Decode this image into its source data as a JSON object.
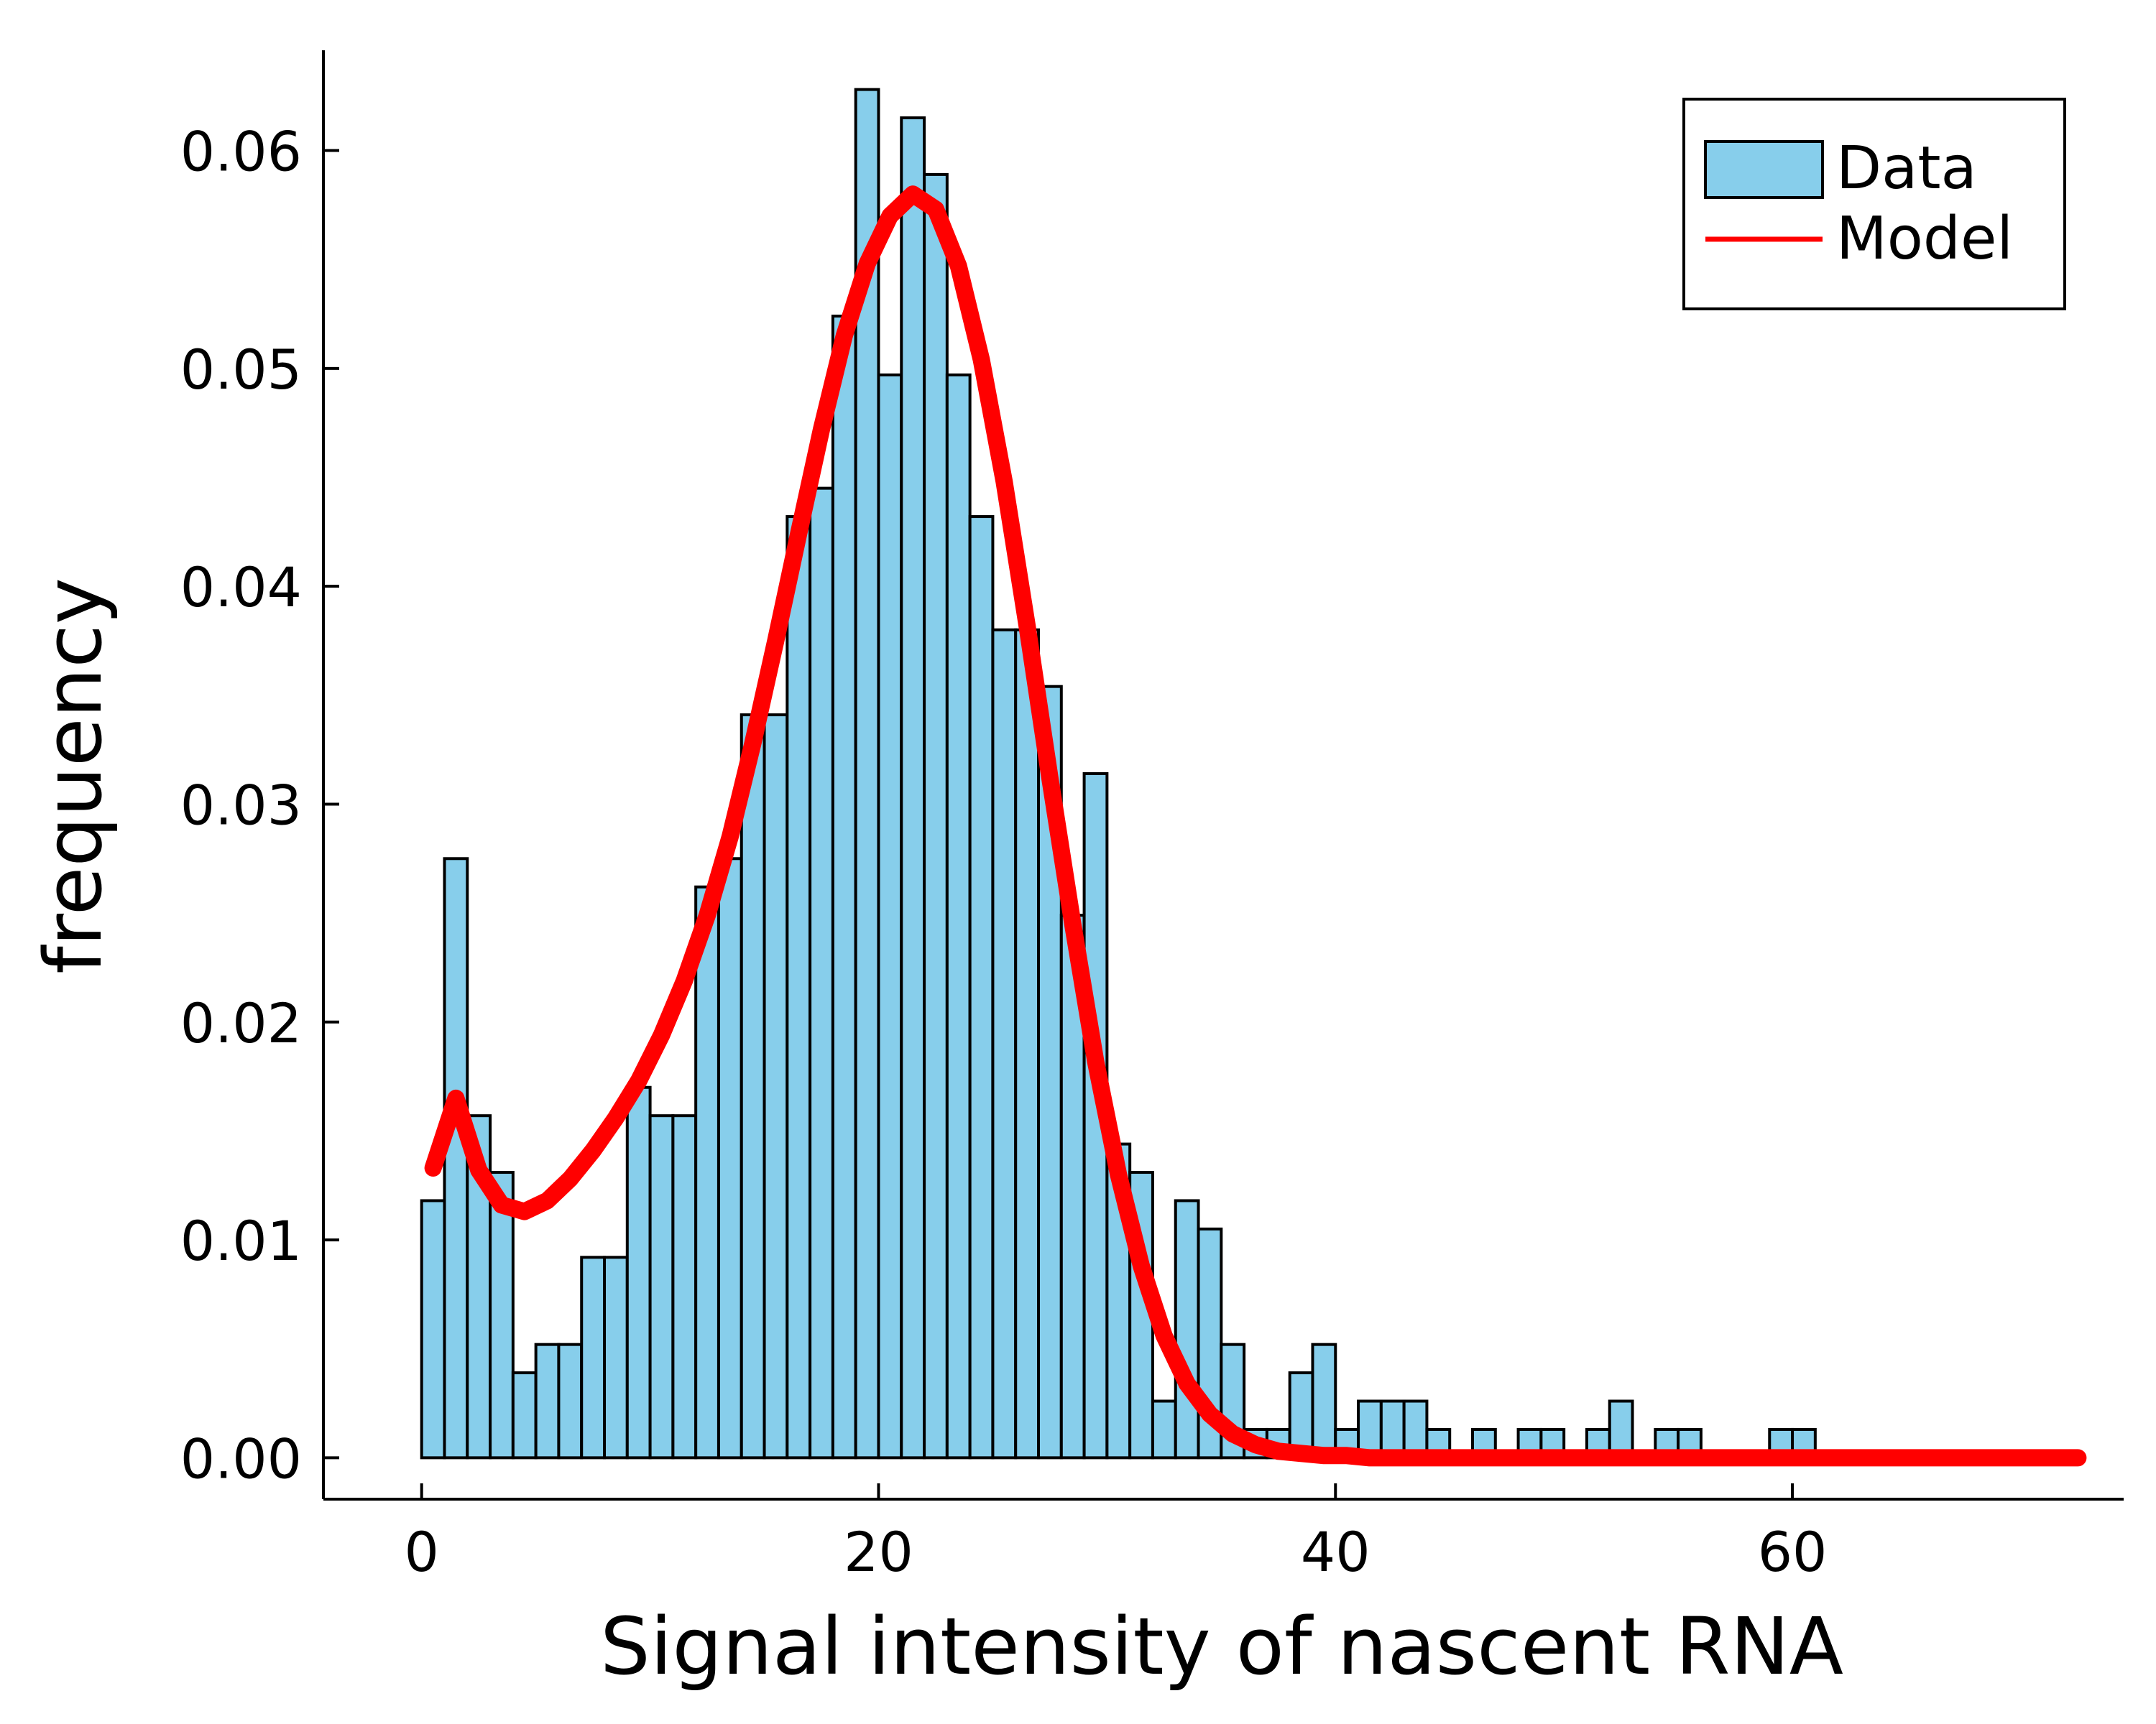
{
  "chart_data": {
    "type": "bar",
    "xlabel": "Signal intensity of nascent RNA",
    "ylabel": "frequency",
    "xlim": [
      -4.3,
      74.5
    ],
    "ylim": [
      -0.0019,
      0.0646
    ],
    "xticks": [
      0,
      20,
      40,
      60
    ],
    "yticks": [
      0.0,
      0.01,
      0.02,
      0.03,
      0.04,
      0.05,
      0.06
    ],
    "xtick_labels": [
      "0",
      "20",
      "40",
      "60"
    ],
    "ytick_labels": [
      "0.00",
      "0.01",
      "0.02",
      "0.03",
      "0.04",
      "0.05",
      "0.06"
    ],
    "grid": false,
    "legend_position": "top-right",
    "colors": {
      "bars": "#87ceeb",
      "bar_edge": "#000000",
      "model": "#ff0000"
    },
    "histogram": {
      "name": "Data",
      "bin_start": 0,
      "bin_width": 1,
      "values": [
        0.0118,
        0.0275,
        0.0157,
        0.0131,
        0.0039,
        0.0052,
        0.0052,
        0.0092,
        0.0092,
        0.017,
        0.0157,
        0.0157,
        0.0262,
        0.0275,
        0.0341,
        0.0341,
        0.0432,
        0.0445,
        0.0524,
        0.0628,
        0.0497,
        0.0615,
        0.0589,
        0.0497,
        0.0432,
        0.038,
        0.038,
        0.0354,
        0.0249,
        0.0314,
        0.0144,
        0.0131,
        0.0026,
        0.0118,
        0.0105,
        0.0052,
        0.0013,
        0.0013,
        0.0039,
        0.0052,
        0.0013,
        0.0026,
        0.0026,
        0.0026,
        0.0013,
        0.0,
        0.0013,
        0.0,
        0.0013,
        0.0013,
        0.0,
        0.0013,
        0.0026,
        0.0,
        0.0013,
        0.0013,
        0.0,
        0.0,
        0.0,
        0.0013,
        0.0013
      ]
    },
    "series": [
      {
        "name": "Model",
        "x": [
          0.5,
          1.5,
          2.5,
          3.5,
          4.5,
          5.5,
          6.5,
          7.5,
          8.5,
          9.5,
          10.5,
          11.5,
          12.5,
          13.5,
          14.5,
          15.5,
          16.5,
          17.5,
          18.5,
          19.5,
          20.5,
          21.5,
          22.5,
          23.5,
          24.5,
          25.5,
          26.5,
          27.5,
          28.5,
          29.5,
          30.5,
          31.5,
          32.5,
          33.5,
          34.5,
          35.5,
          36.5,
          37.5,
          38.5,
          39.5,
          40.5,
          41.5,
          42.5,
          43.5,
          44.5,
          46.5,
          50,
          55,
          60,
          65,
          70,
          72.5
        ],
        "y": [
          0.0133,
          0.0165,
          0.0132,
          0.0116,
          0.0113,
          0.0118,
          0.0128,
          0.0141,
          0.0156,
          0.0173,
          0.0194,
          0.0219,
          0.0249,
          0.0285,
          0.0328,
          0.0375,
          0.0424,
          0.0472,
          0.0515,
          0.0548,
          0.057,
          0.058,
          0.0573,
          0.0547,
          0.0504,
          0.0448,
          0.0382,
          0.0312,
          0.0245,
          0.0182,
          0.013,
          0.0088,
          0.0056,
          0.0034,
          0.002,
          0.0011,
          0.0006,
          0.0003,
          0.0002,
          0.0001,
          0.0001,
          0.0,
          0.0,
          0.0,
          0.0,
          0.0,
          0.0,
          0.0,
          0.0,
          0.0,
          0.0,
          0.0
        ]
      }
    ]
  }
}
